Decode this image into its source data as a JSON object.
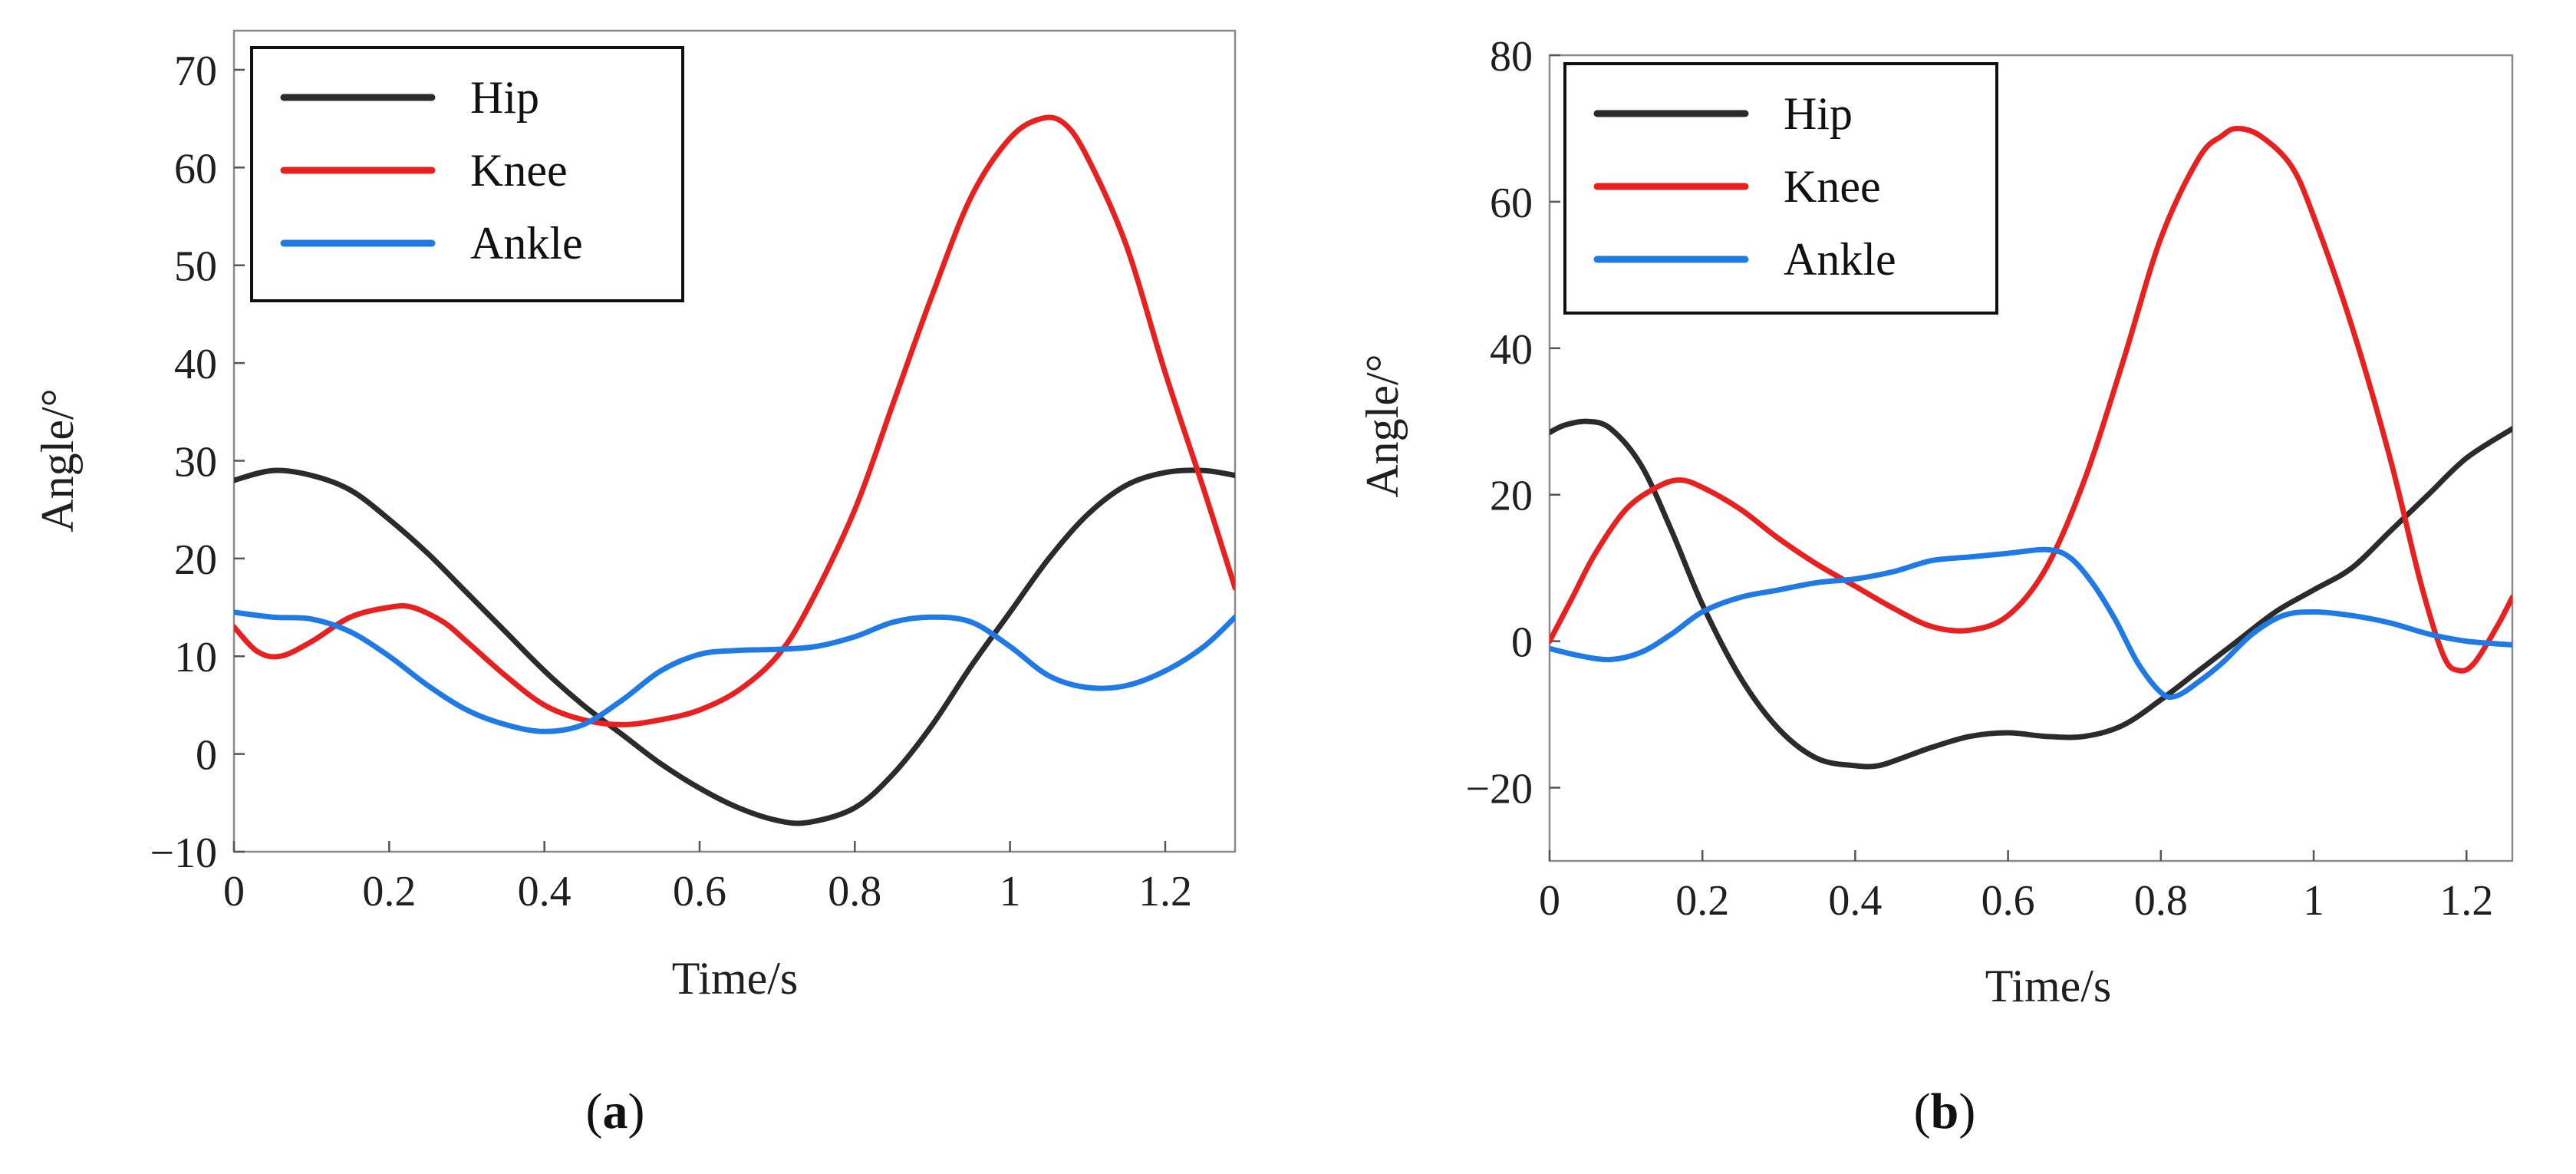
{
  "figure": {
    "panels": [
      "(a)",
      "(b)"
    ]
  },
  "chart_data": [
    {
      "type": "line",
      "panel_label": "(a)",
      "caption_letter": "a",
      "xlabel": "Time/s",
      "ylabel": "Angle/°",
      "xlim": [
        0,
        1.29
      ],
      "ylim": [
        -10,
        74
      ],
      "xticks": [
        0,
        0.2,
        0.4,
        0.6,
        0.8,
        1,
        1.2
      ],
      "xtick_labels": [
        "0",
        "0.2",
        "0.4",
        "0.6",
        "0.8",
        "1",
        "1.2"
      ],
      "yticks": [
        -10,
        0,
        10,
        20,
        30,
        40,
        50,
        60,
        70
      ],
      "ytick_labels": [
        "−10",
        "0",
        "10",
        "20",
        "30",
        "40",
        "50",
        "60",
        "70"
      ],
      "legend": "top-left",
      "series": [
        {
          "name": "Hip",
          "color": "#2b2b2b",
          "x": [
            0,
            0.05,
            0.1,
            0.15,
            0.2,
            0.25,
            0.3,
            0.35,
            0.4,
            0.45,
            0.5,
            0.55,
            0.6,
            0.65,
            0.7,
            0.74,
            0.8,
            0.85,
            0.9,
            0.95,
            1.0,
            1.05,
            1.1,
            1.15,
            1.2,
            1.25,
            1.29
          ],
          "y": [
            28,
            29,
            28.5,
            27,
            24,
            20.5,
            16.5,
            12.5,
            8.5,
            5,
            2,
            -1,
            -3.5,
            -5.5,
            -6.8,
            -7,
            -5.5,
            -2,
            3,
            9,
            14.5,
            20,
            24.5,
            27.5,
            28.8,
            29,
            28.5
          ]
        },
        {
          "name": "Knee",
          "color": "#e8201f",
          "x": [
            0,
            0.03,
            0.06,
            0.1,
            0.15,
            0.2,
            0.23,
            0.27,
            0.3,
            0.35,
            0.4,
            0.45,
            0.5,
            0.55,
            0.6,
            0.65,
            0.7,
            0.74,
            0.8,
            0.85,
            0.9,
            0.95,
            1.0,
            1.04,
            1.07,
            1.1,
            1.15,
            1.2,
            1.25,
            1.29
          ],
          "y": [
            13,
            10.5,
            10,
            11.5,
            14,
            15,
            15,
            13.5,
            11.5,
            8,
            5,
            3.5,
            3,
            3.5,
            4.5,
            6.5,
            10,
            15,
            25,
            36,
            47,
            57,
            63,
            65,
            64.5,
            61,
            52,
            39,
            27,
            17
          ]
        },
        {
          "name": "Ankle",
          "color": "#1f7ae6",
          "x": [
            0,
            0.05,
            0.1,
            0.15,
            0.2,
            0.25,
            0.3,
            0.35,
            0.4,
            0.45,
            0.5,
            0.55,
            0.6,
            0.65,
            0.7,
            0.75,
            0.8,
            0.85,
            0.9,
            0.95,
            1.0,
            1.05,
            1.1,
            1.15,
            1.2,
            1.25,
            1.29
          ],
          "y": [
            14.5,
            14,
            13.8,
            12.5,
            10,
            7,
            4.5,
            3,
            2.3,
            3,
            5.5,
            8.5,
            10.2,
            10.6,
            10.7,
            11,
            12,
            13.5,
            14,
            13.5,
            11,
            8,
            6.8,
            7,
            8.5,
            11,
            14
          ]
        }
      ]
    },
    {
      "type": "line",
      "panel_label": "(b)",
      "caption_letter": "b",
      "xlabel": "Time/s",
      "ylabel": "Angle/°",
      "xlim": [
        0,
        1.26
      ],
      "ylim": [
        -30,
        80
      ],
      "xticks": [
        0,
        0.2,
        0.4,
        0.6,
        0.8,
        1,
        1.2
      ],
      "xtick_labels": [
        "0",
        "0.2",
        "0.4",
        "0.6",
        "0.8",
        "1",
        "1.2"
      ],
      "yticks": [
        -20,
        0,
        20,
        40,
        60,
        80
      ],
      "ytick_labels": [
        "−20",
        "0",
        "20",
        "40",
        "60",
        "80"
      ],
      "legend": "top-left",
      "series": [
        {
          "name": "Hip",
          "color": "#2b2b2b",
          "x": [
            0,
            0.02,
            0.05,
            0.08,
            0.12,
            0.16,
            0.2,
            0.25,
            0.3,
            0.35,
            0.4,
            0.43,
            0.46,
            0.5,
            0.55,
            0.6,
            0.65,
            0.7,
            0.75,
            0.8,
            0.85,
            0.9,
            0.95,
            1.0,
            1.05,
            1.1,
            1.15,
            1.2,
            1.26
          ],
          "y": [
            28.5,
            29.5,
            30,
            29,
            24,
            15,
            5,
            -5,
            -12,
            -16,
            -17,
            -17,
            -16,
            -14.5,
            -13,
            -12.5,
            -13,
            -13,
            -11.5,
            -8,
            -4,
            0,
            4,
            7,
            10,
            15,
            20,
            25,
            29
          ]
        },
        {
          "name": "Knee",
          "color": "#e8201f",
          "x": [
            0,
            0.03,
            0.06,
            0.1,
            0.14,
            0.17,
            0.2,
            0.25,
            0.3,
            0.35,
            0.4,
            0.45,
            0.5,
            0.55,
            0.6,
            0.65,
            0.7,
            0.75,
            0.8,
            0.85,
            0.88,
            0.9,
            0.93,
            0.97,
            1.0,
            1.05,
            1.1,
            1.14,
            1.17,
            1.19,
            1.21,
            1.24,
            1.26
          ],
          "y": [
            0,
            6,
            12,
            18,
            21,
            22,
            21,
            18,
            14,
            10.5,
            7.5,
            4.5,
            2,
            1.5,
            3.5,
            10,
            22,
            38,
            55,
            66,
            69,
            70,
            69,
            65,
            58,
            43,
            25,
            8,
            -2,
            -4,
            -3,
            2,
            6
          ]
        },
        {
          "name": "Ankle",
          "color": "#1f7ae6",
          "x": [
            0,
            0.04,
            0.08,
            0.12,
            0.16,
            0.2,
            0.25,
            0.3,
            0.35,
            0.4,
            0.45,
            0.5,
            0.55,
            0.6,
            0.65,
            0.68,
            0.71,
            0.74,
            0.77,
            0.8,
            0.82,
            0.85,
            0.88,
            0.92,
            0.96,
            1.0,
            1.05,
            1.1,
            1.15,
            1.2,
            1.26
          ],
          "y": [
            -1,
            -2,
            -2.5,
            -1.5,
            1,
            4,
            6,
            7,
            8,
            8.5,
            9.5,
            11,
            11.5,
            12,
            12.5,
            11.5,
            8,
            3,
            -3,
            -7,
            -7.5,
            -5.5,
            -3,
            1,
            3.5,
            4,
            3.5,
            2.5,
            1,
            0,
            -0.5
          ]
        }
      ]
    }
  ]
}
